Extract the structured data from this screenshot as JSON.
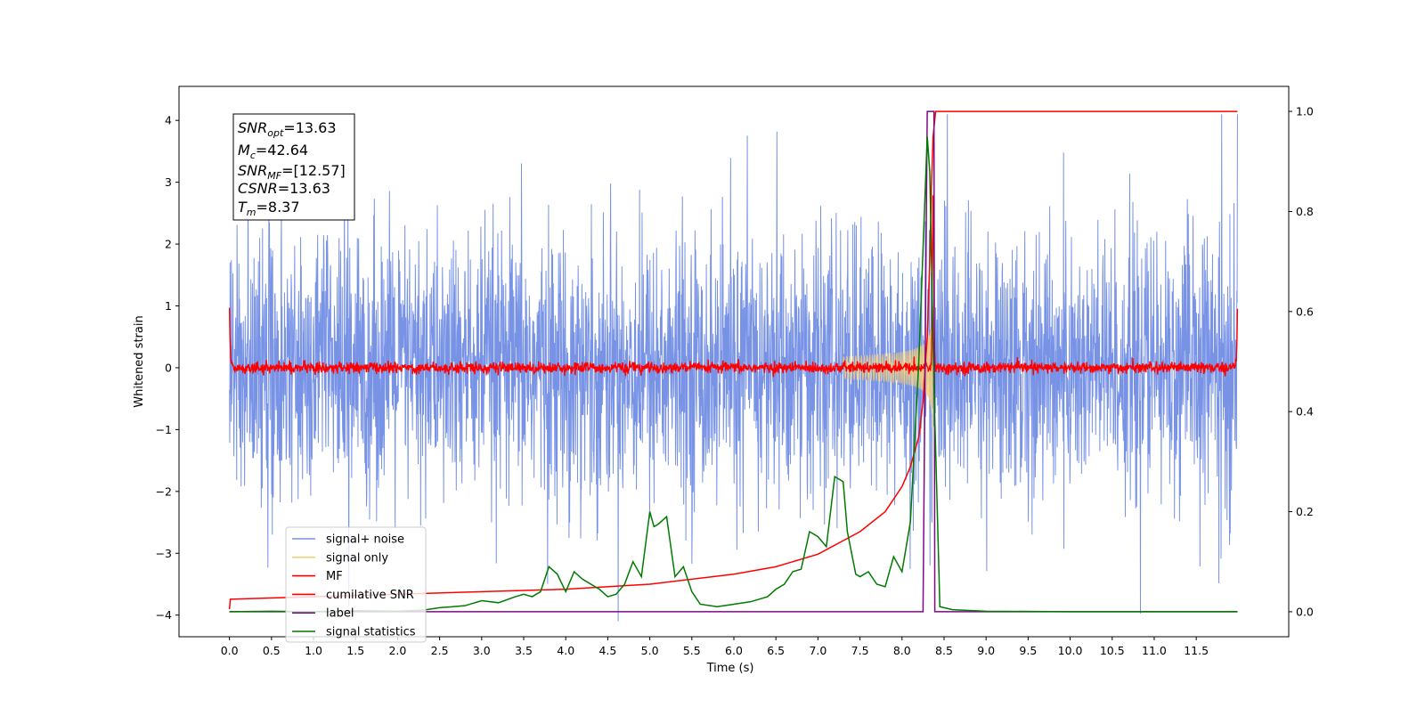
{
  "chart_data": {
    "type": "line",
    "title": "",
    "xlabel": "Time (s)",
    "ylabel": "Whitened strain",
    "y2label": "",
    "xlim": [
      -0.6,
      12.6
    ],
    "ylim": [
      -4.35,
      4.55
    ],
    "y2lim": [
      -0.05,
      1.05
    ],
    "xticks": [
      0.0,
      0.5,
      1.0,
      1.5,
      2.0,
      2.5,
      3.0,
      3.5,
      4.0,
      4.5,
      5.0,
      5.5,
      6.0,
      6.5,
      7.0,
      7.5,
      8.0,
      8.5,
      9.0,
      9.5,
      10.0,
      10.5,
      11.0,
      11.5
    ],
    "xtick_labels": [
      "0.0",
      "0.5",
      "1.0",
      "1.5",
      "2.0",
      "2.5",
      "3.0",
      "3.5",
      "4.0",
      "4.5",
      "5.0",
      "5.5",
      "6.0",
      "6.5",
      "7.0",
      "7.5",
      "8.0",
      "8.5",
      "9.0",
      "9.5",
      "10.0",
      "10.5",
      "11.0",
      "11.5"
    ],
    "yticks": [
      4,
      3,
      2,
      1,
      0,
      -1,
      -2,
      -3,
      -4
    ],
    "ytick_labels": [
      "4",
      "3",
      "2",
      "1",
      "0",
      "−1",
      "−2",
      "−3",
      "−4"
    ],
    "y2ticks": [
      1.0,
      0.8,
      0.6,
      0.4,
      0.2,
      0.0
    ],
    "y2tick_labels": [
      "1.0",
      "0.8",
      "0.6",
      "0.4",
      "0.2",
      "0.0"
    ],
    "grid": false,
    "legend_position": "lower-left",
    "info_box": {
      "snr_opt": {
        "base": "SNR",
        "sub": "opt",
        "value": "=13.63"
      },
      "mc": {
        "base": "M",
        "sub": "c",
        "value": "=42.64"
      },
      "snr_mf": {
        "base": "SNR",
        "sub": "MF",
        "value": "=[12.57]"
      },
      "csnr": {
        "base": "CSNR",
        "value": "=13.63"
      },
      "tm": {
        "base": "T",
        "sub": "m",
        "value": "=8.37"
      }
    },
    "series": [
      {
        "name": "signal+ noise",
        "color": "#7893e6",
        "axis": "left",
        "description_kind": "noise",
        "x_range": [
          0.0,
          11.99
        ],
        "amplitude_typical": 1.35,
        "amplitude_max": 4.1
      },
      {
        "name": "signal only",
        "color": "#f5cf7a",
        "axis": "left",
        "description_kind": "chirp",
        "x_range": [
          7.3,
          8.4
        ],
        "peak_amplitude": 1.0
      },
      {
        "name": "MF",
        "color": "#ff0000",
        "axis": "left",
        "description_kind": "mf",
        "x_range": [
          0.0,
          11.99
        ],
        "edge_values": [
          1.0,
          1.0
        ]
      },
      {
        "name": "cumilative SNR",
        "color": "#ff0000",
        "axis": "right",
        "x": [
          0.0,
          0.01,
          2.0,
          4.0,
          5.0,
          6.0,
          6.5,
          7.0,
          7.5,
          7.8,
          8.0,
          8.1,
          8.2,
          8.25,
          8.3,
          8.33,
          8.35,
          8.37,
          8.4,
          11.99
        ],
        "y": [
          0.005,
          0.025,
          0.035,
          0.045,
          0.055,
          0.075,
          0.09,
          0.115,
          0.16,
          0.2,
          0.25,
          0.29,
          0.35,
          0.42,
          0.55,
          0.7,
          0.85,
          0.95,
          1.0,
          1.0
        ]
      },
      {
        "name": "label",
        "color": "#7b0a85",
        "axis": "right",
        "x": [
          0.0,
          8.25,
          8.3,
          8.38,
          8.39,
          11.99
        ],
        "y": [
          0.0,
          0.0,
          1.0,
          1.0,
          0.0,
          0.0
        ]
      },
      {
        "name": "signal statistics",
        "color": "#007a00",
        "axis": "right",
        "x": [
          0.0,
          0.5,
          1.0,
          1.5,
          2.0,
          2.3,
          2.5,
          2.8,
          3.0,
          3.2,
          3.4,
          3.5,
          3.6,
          3.7,
          3.8,
          3.9,
          4.0,
          4.1,
          4.2,
          4.4,
          4.5,
          4.6,
          4.7,
          4.8,
          4.9,
          5.0,
          5.05,
          5.1,
          5.2,
          5.3,
          5.4,
          5.5,
          5.6,
          5.8,
          6.0,
          6.2,
          6.4,
          6.5,
          6.6,
          6.7,
          6.8,
          6.9,
          7.0,
          7.1,
          7.2,
          7.3,
          7.35,
          7.45,
          7.5,
          7.6,
          7.7,
          7.8,
          7.9,
          8.0,
          8.1,
          8.2,
          8.3,
          8.33,
          8.38,
          8.45,
          8.6,
          9.0,
          10.0,
          11.0,
          11.99
        ],
        "y": [
          0.0,
          0.001,
          0.0,
          0.002,
          0.001,
          0.003,
          0.008,
          0.012,
          0.022,
          0.018,
          0.03,
          0.035,
          0.03,
          0.04,
          0.09,
          0.075,
          0.04,
          0.08,
          0.065,
          0.045,
          0.03,
          0.035,
          0.055,
          0.1,
          0.07,
          0.2,
          0.17,
          0.175,
          0.19,
          0.07,
          0.09,
          0.04,
          0.015,
          0.01,
          0.015,
          0.02,
          0.03,
          0.045,
          0.055,
          0.08,
          0.085,
          0.16,
          0.15,
          0.13,
          0.27,
          0.26,
          0.16,
          0.075,
          0.07,
          0.08,
          0.055,
          0.05,
          0.11,
          0.08,
          0.18,
          0.5,
          0.95,
          0.88,
          0.45,
          0.01,
          0.004,
          0.001,
          0.0,
          0.0,
          0.0
        ]
      }
    ]
  }
}
